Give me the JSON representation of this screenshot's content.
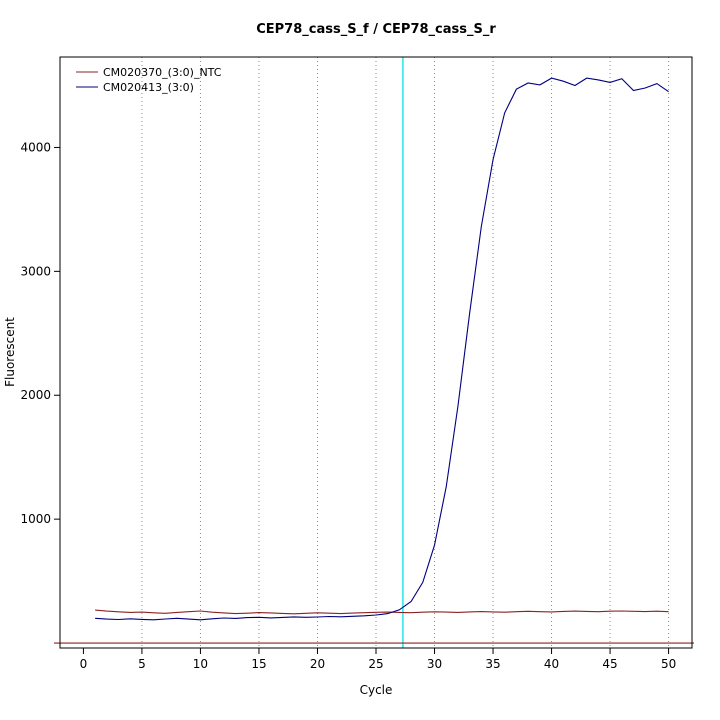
{
  "chart_data": {
    "type": "line",
    "title": "CEP78_cass_S_f / CEP78_cass_S_r",
    "xlabel": "Cycle",
    "ylabel": "Fluorescent",
    "xlim": [
      -2,
      52
    ],
    "ylim": [
      -40,
      4730
    ],
    "x_ticks": [
      0,
      5,
      10,
      15,
      20,
      25,
      30,
      35,
      40,
      45,
      50
    ],
    "y_ticks": [
      1000,
      2000,
      3000,
      4000
    ],
    "grid_x": [
      5,
      10,
      15,
      20,
      25,
      30,
      35,
      40,
      45,
      50
    ],
    "grid_style": "vertical-dotted",
    "legend_position": "top-left",
    "threshold_cycle_line": {
      "x": 27.3,
      "color": "#00e5e5"
    },
    "baseline_line": {
      "y": 0,
      "color": "#8b2323"
    },
    "x": [
      1,
      2,
      3,
      4,
      5,
      6,
      7,
      8,
      9,
      10,
      11,
      12,
      13,
      14,
      15,
      16,
      17,
      18,
      19,
      20,
      21,
      22,
      23,
      24,
      25,
      26,
      27,
      28,
      29,
      30,
      31,
      32,
      33,
      34,
      35,
      36,
      37,
      38,
      39,
      40,
      41,
      42,
      43,
      44,
      45,
      46,
      47,
      48,
      49,
      50
    ],
    "series": [
      {
        "name": "CM020370_(3:0)_NTC",
        "color": "#8b2323",
        "values": [
          266,
          258,
          252,
          247,
          250,
          244,
          240,
          247,
          253,
          259,
          249,
          243,
          238,
          241,
          246,
          243,
          239,
          236,
          240,
          244,
          241,
          238,
          242,
          245,
          248,
          250,
          247,
          245,
          249,
          252,
          250,
          247,
          251,
          254,
          251,
          249,
          253,
          256,
          253,
          251,
          255,
          258,
          255,
          253,
          257,
          259,
          256,
          254,
          257,
          253
        ]
      },
      {
        "name": "CM020413_(3:0)",
        "color": "#000080",
        "values": [
          200,
          193,
          190,
          196,
          191,
          188,
          194,
          200,
          193,
          188,
          196,
          202,
          199,
          205,
          208,
          203,
          207,
          211,
          208,
          210,
          214,
          212,
          216,
          220,
          226,
          238,
          268,
          335,
          490,
          790,
          1260,
          1910,
          2660,
          3360,
          3900,
          4280,
          4470,
          4520,
          4505,
          4560,
          4535,
          4500,
          4560,
          4545,
          4525,
          4555,
          4460,
          4480,
          4515,
          4450
        ]
      }
    ]
  }
}
